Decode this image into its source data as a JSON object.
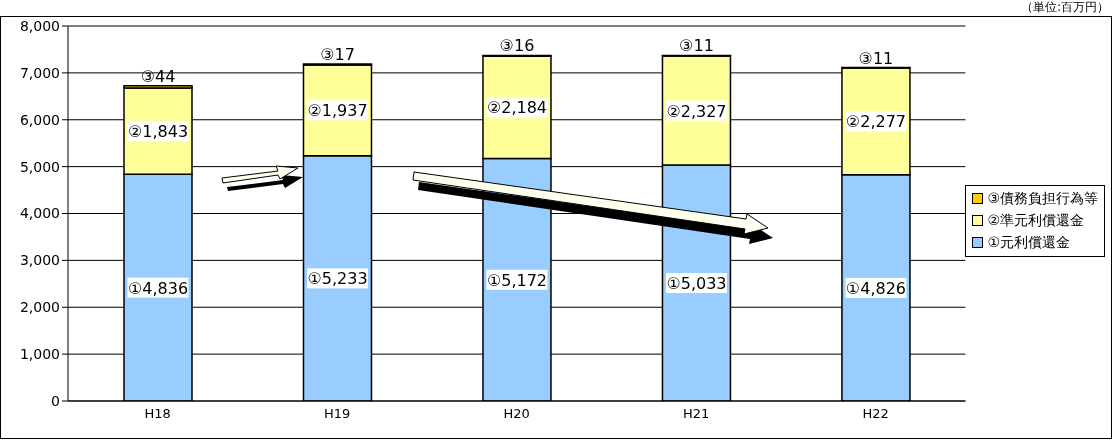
{
  "chart_data": {
    "type": "bar",
    "stacked": true,
    "categories": [
      "H18",
      "H19",
      "H20",
      "H21",
      "H22"
    ],
    "series": [
      {
        "name": "①元利償還金",
        "color": "#99ccff",
        "values": [
          4836,
          5233,
          5172,
          5033,
          4826
        ],
        "value_labels": [
          "①4,836",
          "①5,233",
          "①5,172",
          "①5,033",
          "①4,826"
        ]
      },
      {
        "name": "②準元利償還金",
        "color": "#ffff99",
        "values": [
          1843,
          1937,
          2184,
          2327,
          2277
        ],
        "value_labels": [
          "②1,843",
          "②1,937",
          "②2,184",
          "②2,327",
          "②2,277"
        ]
      },
      {
        "name": "③債務負担行為等",
        "color": "#ffcc00",
        "values": [
          44,
          17,
          16,
          11,
          11
        ],
        "value_labels": [
          "③44",
          "③17",
          "③16",
          "③11",
          "③11"
        ]
      }
    ],
    "ylim": [
      0,
      8000
    ],
    "yticks": [
      {
        "value": 0,
        "label": "0"
      },
      {
        "value": 1000,
        "label": "1,000"
      },
      {
        "value": 2000,
        "label": "2,000"
      },
      {
        "value": 3000,
        "label": "3,000"
      },
      {
        "value": 4000,
        "label": "4,000"
      },
      {
        "value": 5000,
        "label": "5,000"
      },
      {
        "value": 6000,
        "label": "6,000"
      },
      {
        "value": 7000,
        "label": "7,000"
      },
      {
        "value": 8000,
        "label": "8,000"
      }
    ],
    "grid": "y",
    "legend": "right",
    "annotations": [
      "（単位:百万円）"
    ]
  }
}
